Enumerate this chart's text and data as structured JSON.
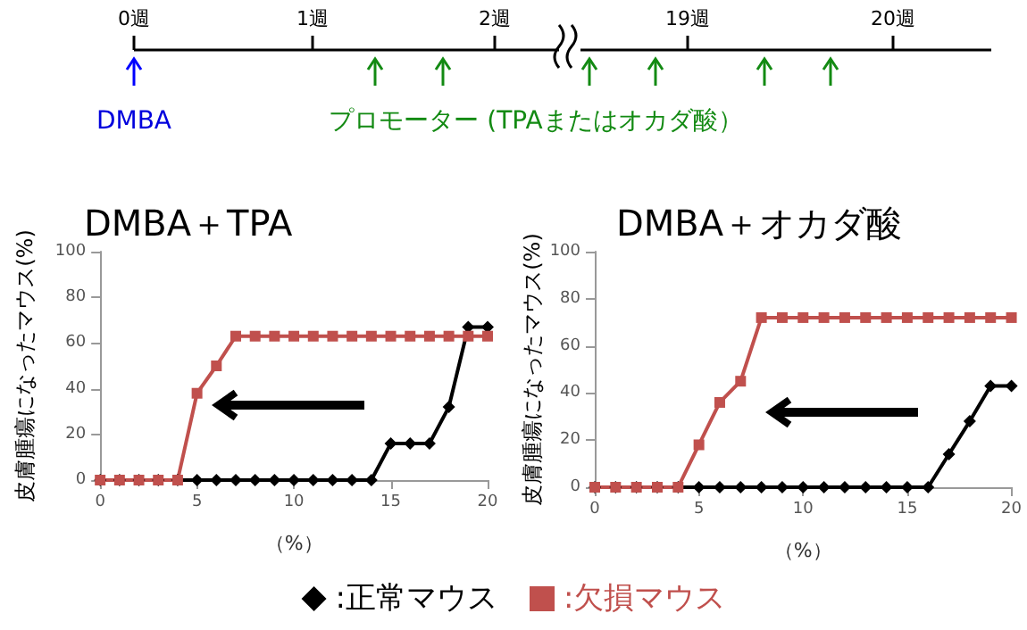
{
  "chart_data": [
    {
      "type": "other",
      "annotations": [
        "0週",
        "1週",
        "2週",
        "19週",
        "20週",
        "DMBA",
        "プロモーター (TPAまたはオカダ酸）"
      ]
    },
    {
      "type": "line",
      "title": "DMBA＋TPA",
      "xlabel": "（%）",
      "ylabel": "皮膚腫瘍になったマウス(%)",
      "x": [
        0,
        1,
        2,
        3,
        4,
        5,
        6,
        7,
        8,
        9,
        10,
        11,
        12,
        13,
        14,
        15,
        16,
        17,
        18,
        19,
        20
      ],
      "xlim": [
        0,
        20
      ],
      "xticks": [
        0,
        5,
        10,
        15,
        20
      ],
      "ylim": [
        0,
        100
      ],
      "yticks": [
        0,
        20,
        40,
        60,
        80,
        100
      ],
      "grid": false,
      "legend": false,
      "series": [
        {
          "color": "#000000",
          "marker": "diamond",
          "values": [
            0,
            0,
            0,
            0,
            0,
            0,
            0,
            0,
            0,
            0,
            0,
            0,
            0,
            0,
            0,
            16,
            16,
            16,
            32,
            67,
            67
          ]
        },
        {
          "color": "#c0504d",
          "marker": "square",
          "values": [
            0,
            0,
            0,
            0,
            0,
            38,
            50,
            63,
            63,
            63,
            63,
            63,
            63,
            63,
            63,
            63,
            63,
            63,
            63,
            63,
            63
          ]
        }
      ]
    },
    {
      "type": "line",
      "title": "DMBA＋オカダ酸",
      "xlabel": "（%）",
      "ylabel": "皮膚腫瘍になったマウス(%)",
      "x": [
        0,
        1,
        2,
        3,
        4,
        5,
        6,
        7,
        8,
        9,
        10,
        11,
        12,
        13,
        14,
        15,
        16,
        17,
        18,
        19,
        20
      ],
      "xlim": [
        0,
        20
      ],
      "xticks": [
        0,
        5,
        10,
        15,
        20
      ],
      "ylim": [
        0,
        100
      ],
      "yticks": [
        0,
        20,
        40,
        60,
        80,
        100
      ],
      "grid": false,
      "legend": "bottom",
      "series": [
        {
          "name": ":正常マウス",
          "color": "#000000",
          "marker": "diamond",
          "values": [
            0,
            0,
            0,
            0,
            0,
            0,
            0,
            0,
            0,
            0,
            0,
            0,
            0,
            0,
            0,
            0,
            0,
            14,
            28,
            43,
            43
          ]
        },
        {
          "name": ":欠損マウス",
          "color": "#c0504d",
          "marker": "square",
          "values": [
            0,
            0,
            0,
            0,
            0,
            18,
            36,
            45,
            72,
            72,
            72,
            72,
            72,
            72,
            72,
            72,
            72,
            72,
            72,
            72,
            72
          ]
        }
      ]
    }
  ]
}
